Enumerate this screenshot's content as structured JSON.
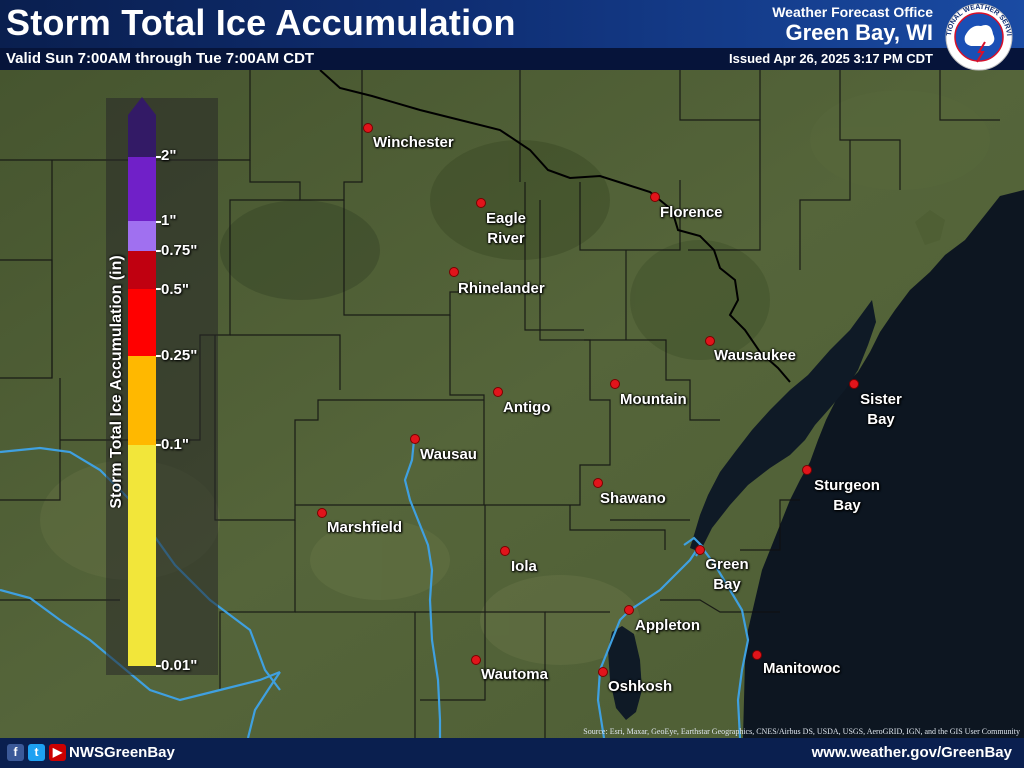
{
  "header": {
    "title": "Storm Total Ice Accumulation",
    "valid": "Valid Sun 7:00AM through Tue 7:00AM CDT",
    "office_label": "Weather Forecast Office",
    "office_city": "Green Bay, WI",
    "issued": "Issued Apr 26, 2025 3:17 PM CDT",
    "logo": {
      "icon": "nws-logo-icon",
      "ring_text": "NATIONAL WEATHER SERVICE"
    }
  },
  "legend": {
    "title": "Storm Total Ice Accumulation (in)",
    "ticks": [
      "2\"",
      "1\"",
      "0.75\"",
      "0.5\"",
      "0.25\"",
      "0.1\"",
      "0.01\""
    ],
    "colors": [
      "#331a66",
      "#7020c8",
      "#a070f0",
      "#c00010",
      "#ff0000",
      "#ffb800",
      "#f2e63a"
    ]
  },
  "cities": [
    {
      "name": "Winchester"
    },
    {
      "name": "Eagle\nRiver"
    },
    {
      "name": "Florence"
    },
    {
      "name": "Rhinelander"
    },
    {
      "name": "Wausaukee"
    },
    {
      "name": "Sister\nBay"
    },
    {
      "name": "Antigo"
    },
    {
      "name": "Mountain"
    },
    {
      "name": "Wausau"
    },
    {
      "name": "Sturgeon\nBay"
    },
    {
      "name": "Shawano"
    },
    {
      "name": "Marshfield"
    },
    {
      "name": "Green\nBay"
    },
    {
      "name": "Iola"
    },
    {
      "name": "Appleton"
    },
    {
      "name": "Wautoma"
    },
    {
      "name": "Oshkosh"
    },
    {
      "name": "Manitowoc"
    }
  ],
  "map": {
    "colors": {
      "land": "#4a5a32",
      "water": "#0d1621",
      "border": "#000000",
      "river": "#3fa0e0"
    },
    "source": "Source: Esri, Maxar, GeoEye, Earthstar Geographics, CNES/Airbus DS, USDA, USGS, AeroGRID, IGN, and the GIS User Community"
  },
  "footer": {
    "social_icons": [
      "facebook-icon",
      "twitter-icon",
      "youtube-icon"
    ],
    "handle": "NWSGreenBay",
    "website": "www.weather.gov/GreenBay"
  }
}
